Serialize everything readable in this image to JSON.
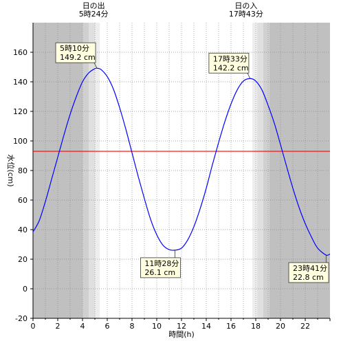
{
  "chart_data": {
    "type": "line",
    "xlabel": "時間(h)",
    "ylabel": "水位(cm)",
    "xlim": [
      0,
      24
    ],
    "ylim": [
      -20,
      180
    ],
    "xticks": [
      0,
      2,
      4,
      6,
      8,
      10,
      12,
      14,
      16,
      18,
      20,
      22
    ],
    "yticks": [
      -20,
      0,
      20,
      40,
      60,
      80,
      100,
      120,
      140,
      160
    ],
    "grid": true,
    "reference_line": {
      "value": 93,
      "color": "#ff0000"
    },
    "series": [
      {
        "color": "#0000ff",
        "x": [
          0,
          0.5,
          1,
          1.5,
          2,
          2.5,
          3,
          3.5,
          4,
          4.5,
          5,
          5.167,
          5.5,
          6,
          6.5,
          7,
          7.5,
          8,
          8.5,
          9,
          9.5,
          10,
          10.5,
          11,
          11.467,
          12,
          12.5,
          13,
          13.5,
          14,
          14.5,
          15,
          15.5,
          16,
          16.5,
          17,
          17.55,
          18,
          18.5,
          19,
          19.5,
          20,
          20.5,
          21,
          21.5,
          22,
          22.5,
          23,
          23.683,
          24
        ],
        "y": [
          38.5,
          46,
          59,
          74,
          89,
          104,
          118,
          130,
          140,
          146,
          148.9,
          149.2,
          148.3,
          143.5,
          135,
          122.5,
          108,
          92,
          76,
          61,
          47,
          36.5,
          29.5,
          26.5,
          26.1,
          27.5,
          33,
          42,
          54,
          68,
          84,
          99,
          113,
          125,
          134.5,
          140.5,
          142.2,
          140.5,
          134.5,
          124,
          112,
          97.5,
          82.5,
          68,
          55,
          44,
          35,
          27.5,
          22.8,
          23.5
        ]
      }
    ],
    "sun_events": [
      {
        "title": "日の出",
        "time": "5時24分",
        "hour": 5.4
      },
      {
        "title": "日の入",
        "time": "17時43分",
        "hour": 17.717
      }
    ],
    "twilight_bands": [
      {
        "from": 0,
        "to": 4.0,
        "color": "#c0c0c0"
      },
      {
        "from": 4.0,
        "to": 4.5,
        "color": "#d0d0d0"
      },
      {
        "from": 4.5,
        "to": 5.0,
        "color": "#e0e0e0"
      },
      {
        "from": 5.0,
        "to": 5.4,
        "color": "#eeeeee"
      },
      {
        "from": 17.717,
        "to": 18.1,
        "color": "#eeeeee"
      },
      {
        "from": 18.1,
        "to": 18.6,
        "color": "#e0e0e0"
      },
      {
        "from": 18.6,
        "to": 19.1,
        "color": "#d0d0d0"
      },
      {
        "from": 19.1,
        "to": 24,
        "color": "#c0c0c0"
      }
    ],
    "annotations": [
      {
        "time": "5時10分",
        "level": "149.2 cm",
        "x": 5.167,
        "y": 149.2,
        "side": "left-above"
      },
      {
        "time": "11時28分",
        "level": "26.1 cm",
        "x": 11.467,
        "y": 26.1,
        "side": "left-below"
      },
      {
        "time": "17時33分",
        "level": "142.2 cm",
        "x": 17.55,
        "y": 142.2,
        "side": "left-above"
      },
      {
        "time": "23時41分",
        "level": "22.8 cm",
        "x": 23.683,
        "y": 22.8,
        "side": "left-below"
      }
    ]
  }
}
